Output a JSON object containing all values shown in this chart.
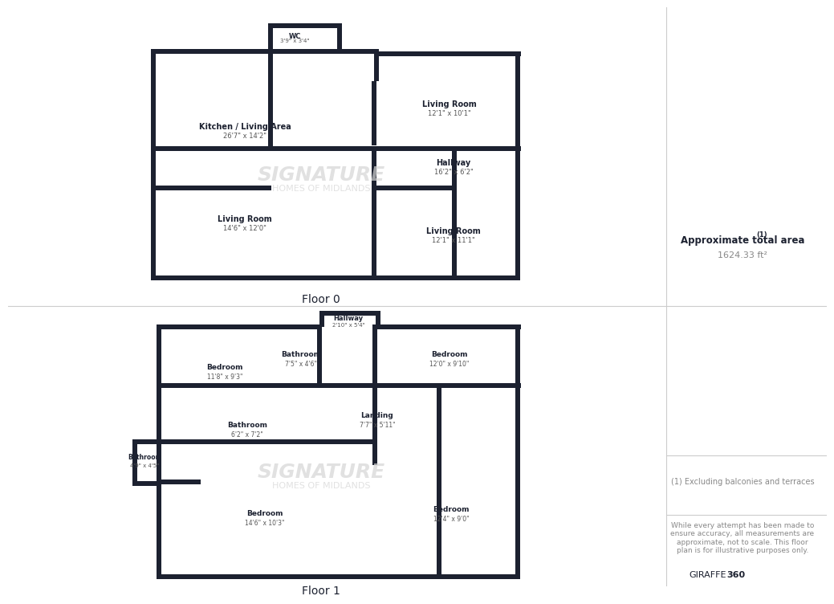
{
  "bg_color": "#ffffff",
  "wall_color": "#1c2130",
  "text_color": "#1c2130",
  "label_dim_color": "#666666",
  "watermark_color": "#d8d8d8",
  "title": "Approximate total area",
  "title_super": "(1)",
  "area": "1624.33 ft²",
  "floor0_label": "Floor 0",
  "floor1_label": "Floor 1",
  "note1": "(1) Excluding balconies and terraces",
  "note2": "While every attempt has been made to\nensure accuracy, all measurements are\napproximate, not to scale. This floor\nplan is for illustrative purposes only.",
  "brand_normal": "GIRAFFE",
  "brand_bold": "360",
  "sidebar_line_color": "#cccccc",
  "divider_color": "#cccccc"
}
